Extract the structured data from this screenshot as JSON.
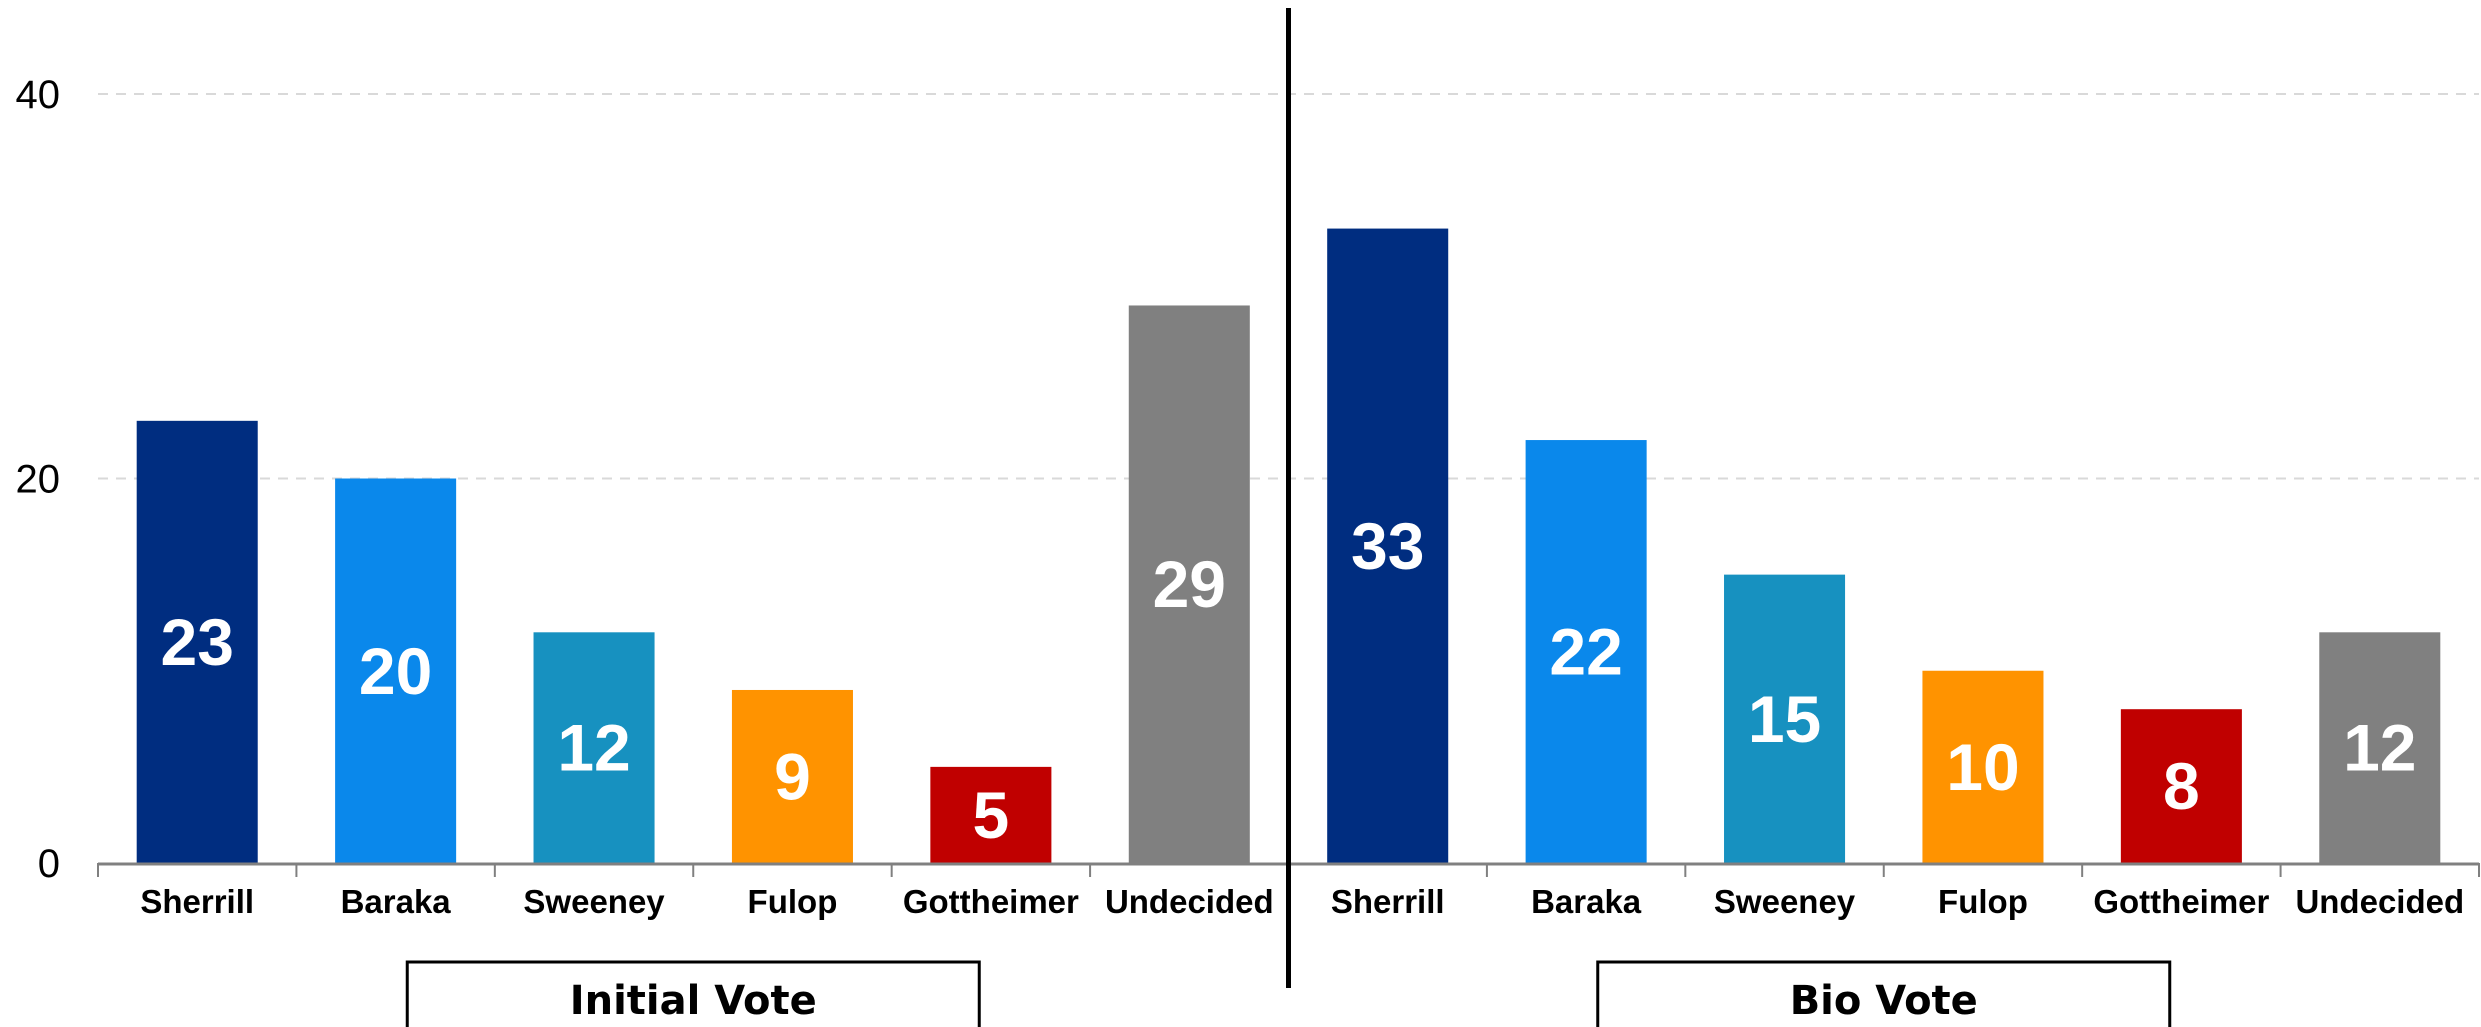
{
  "chart_data": {
    "type": "bar",
    "ylim": [
      0,
      40
    ],
    "yticks": [
      "0",
      "20",
      "40"
    ],
    "grid": true,
    "groups": [
      {
        "label": "Initial Vote",
        "categories": [
          "Sherrill",
          "Baraka",
          "Sweeney",
          "Fulop",
          "Gottheimer",
          "Undecided"
        ],
        "values": [
          23,
          20,
          12,
          9,
          5,
          29
        ]
      },
      {
        "label": "Bio Vote",
        "categories": [
          "Sherrill",
          "Baraka",
          "Sweeney",
          "Fulop",
          "Gottheimer",
          "Undecided"
        ],
        "values": [
          33,
          22,
          15,
          10,
          8,
          12
        ]
      }
    ],
    "colors": {
      "Sherrill": "#002D80",
      "Baraka": "#0A88EB",
      "Sweeney": "#1791C0",
      "Fulop": "#FF9300",
      "Gottheimer": "#C00000",
      "Undecided": "#808080"
    }
  }
}
